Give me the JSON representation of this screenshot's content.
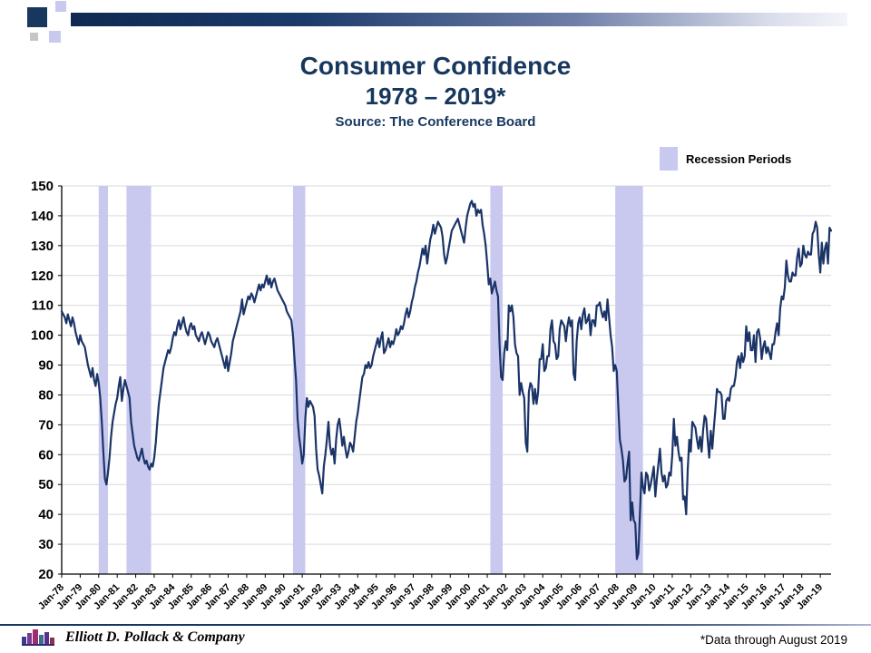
{
  "slide": {
    "title_line1": "Consumer Confidence",
    "title_line2": "1978 – 2019*",
    "subtitle": "Source: The Conference Board",
    "footer_company": "Elliott D. Pollack & Company",
    "footer_note": "*Data through August 2019"
  },
  "legend": {
    "label": "Recession Periods"
  },
  "chart_data": {
    "type": "line",
    "title": "Consumer Confidence 1978 – 2019*",
    "xlabel": "",
    "ylabel": "",
    "ylim": [
      20,
      150
    ],
    "ytick_step": 10,
    "grid": true,
    "legend_entries": [
      "Recession Periods"
    ],
    "x_start": "1978-01",
    "x_end": "2019-08",
    "x_interval": "monthly",
    "xtick_interval_months": 12,
    "xtick_labels": [
      "Jan-78",
      "Jan-79",
      "Jan-80",
      "Jan-81",
      "Jan-82",
      "Jan-83",
      "Jan-84",
      "Jan-85",
      "Jan-86",
      "Jan-87",
      "Jan-88",
      "Jan-89",
      "Jan-90",
      "Jan-91",
      "Jan-92",
      "Jan-93",
      "Jan-94",
      "Jan-95",
      "Jan-96",
      "Jan-97",
      "Jan-98",
      "Jan-99",
      "Jan-00",
      "Jan-01",
      "Jan-02",
      "Jan-03",
      "Jan-04",
      "Jan-05",
      "Jan-06",
      "Jan-07",
      "Jan-08",
      "Jan-09",
      "Jan-10",
      "Jan-11",
      "Jan-12",
      "Jan-13",
      "Jan-14",
      "Jan-15",
      "Jan-16",
      "Jan-17",
      "Jan-18",
      "Jan-19"
    ],
    "line_color": "#1b3468",
    "band_color": "#c9c9f0",
    "grid_color": "#d9d9d9",
    "recession_bands": [
      {
        "from": "1980-01",
        "to": "1980-07"
      },
      {
        "from": "1981-07",
        "to": "1982-11"
      },
      {
        "from": "1990-07",
        "to": "1991-03"
      },
      {
        "from": "2001-03",
        "to": "2001-11"
      },
      {
        "from": "2007-12",
        "to": "2009-06"
      }
    ],
    "values": [
      108,
      107,
      106,
      104,
      107,
      105,
      103,
      106,
      104,
      101,
      99,
      97,
      100,
      98,
      97,
      96,
      93,
      90,
      88,
      86,
      89,
      85,
      83,
      87,
      84,
      79,
      71,
      61,
      52,
      50,
      54,
      59,
      66,
      71,
      74,
      77,
      79,
      83,
      86,
      78,
      82,
      85,
      83,
      81,
      79,
      71,
      67,
      63,
      61,
      59,
      58,
      60,
      62,
      59,
      57,
      58,
      56,
      55,
      57,
      56,
      59,
      64,
      71,
      77,
      81,
      85,
      89,
      91,
      93,
      95,
      94,
      96,
      99,
      101,
      100,
      103,
      105,
      102,
      104,
      106,
      103,
      101,
      100,
      103,
      104,
      102,
      103,
      100,
      99,
      98,
      100,
      101,
      99,
      97,
      99,
      101,
      100,
      98,
      97,
      96,
      98,
      99,
      97,
      95,
      93,
      91,
      89,
      93,
      88,
      91,
      94,
      98,
      100,
      102,
      104,
      106,
      108,
      112,
      107,
      109,
      111,
      113,
      112,
      114,
      113,
      111,
      113,
      115,
      117,
      115,
      117,
      116,
      118,
      120,
      117,
      119,
      116,
      118,
      119,
      117,
      115,
      114,
      113,
      112,
      111,
      110,
      108,
      107,
      106,
      105,
      100,
      92,
      85,
      72,
      66,
      62,
      57,
      60,
      72,
      79,
      76,
      78,
      77,
      76,
      73,
      62,
      55,
      53,
      50,
      47,
      56,
      60,
      65,
      71,
      63,
      60,
      62,
      57,
      65,
      70,
      72,
      68,
      63,
      66,
      62,
      59,
      61,
      64,
      63,
      61,
      66,
      71,
      74,
      78,
      82,
      86,
      87,
      90,
      89,
      91,
      89,
      90,
      93,
      95,
      97,
      99,
      96,
      99,
      101,
      94,
      95,
      97,
      99,
      96,
      98,
      97,
      99,
      102,
      100,
      101,
      103,
      102,
      104,
      107,
      109,
      106,
      108,
      111,
      113,
      116,
      118,
      121,
      123,
      126,
      129,
      127,
      130,
      124,
      128,
      132,
      134,
      137,
      134,
      136,
      138,
      137,
      136,
      133,
      127,
      124,
      126,
      129,
      132,
      135,
      136,
      137,
      138,
      139,
      137,
      135,
      133,
      131,
      136,
      140,
      142,
      144,
      145,
      143,
      144,
      140,
      142,
      141,
      142,
      137,
      134,
      130,
      124,
      117,
      119,
      114,
      116,
      118,
      115,
      113,
      97,
      86,
      85,
      94,
      98,
      95,
      110,
      108,
      110,
      106,
      97,
      94,
      93,
      80,
      84,
      81,
      79,
      64,
      61,
      81,
      84,
      83,
      77,
      82,
      77,
      81,
      92,
      92,
      97,
      88,
      89,
      93,
      93,
      102,
      105,
      98,
      97,
      92,
      93,
      102,
      105,
      104,
      103,
      98,
      103,
      106,
      103,
      105,
      87,
      85,
      98,
      104,
      106,
      102,
      107,
      109,
      104,
      105,
      107,
      100,
      105,
      105,
      103,
      110,
      110,
      111,
      108,
      106,
      108,
      105,
      112,
      106,
      100,
      96,
      88,
      90,
      88,
      76,
      65,
      62,
      58,
      51,
      52,
      57,
      61,
      38,
      44,
      38,
      37,
      25,
      27,
      40,
      54,
      49,
      47,
      54,
      53,
      48,
      50,
      53,
      56,
      46,
      52,
      57,
      62,
      54,
      51,
      53,
      49,
      50,
      54,
      53,
      60,
      72,
      63,
      66,
      61,
      58,
      59,
      45,
      46,
      40,
      55,
      65,
      61,
      71,
      70,
      69,
      65,
      62,
      66,
      61,
      68,
      73,
      72,
      65,
      59,
      68,
      62,
      69,
      75,
      82,
      81,
      81,
      80,
      72,
      72,
      78,
      79,
      78,
      82,
      83,
      83,
      86,
      91,
      93,
      89,
      94,
      91,
      93,
      103,
      98,
      101,
      95,
      95,
      100,
      91,
      101,
      102,
      99,
      92,
      96,
      98,
      94,
      96,
      94,
      92,
      97,
      97,
      101,
      104,
      100,
      109,
      113,
      112,
      116,
      125,
      120,
      118,
      118,
      121,
      120,
      120,
      126,
      129,
      123,
      124,
      130,
      127,
      126,
      128,
      127,
      127,
      134,
      135,
      138,
      136,
      127,
      121,
      131,
      124,
      129,
      131,
      124,
      136,
      135
    ]
  }
}
